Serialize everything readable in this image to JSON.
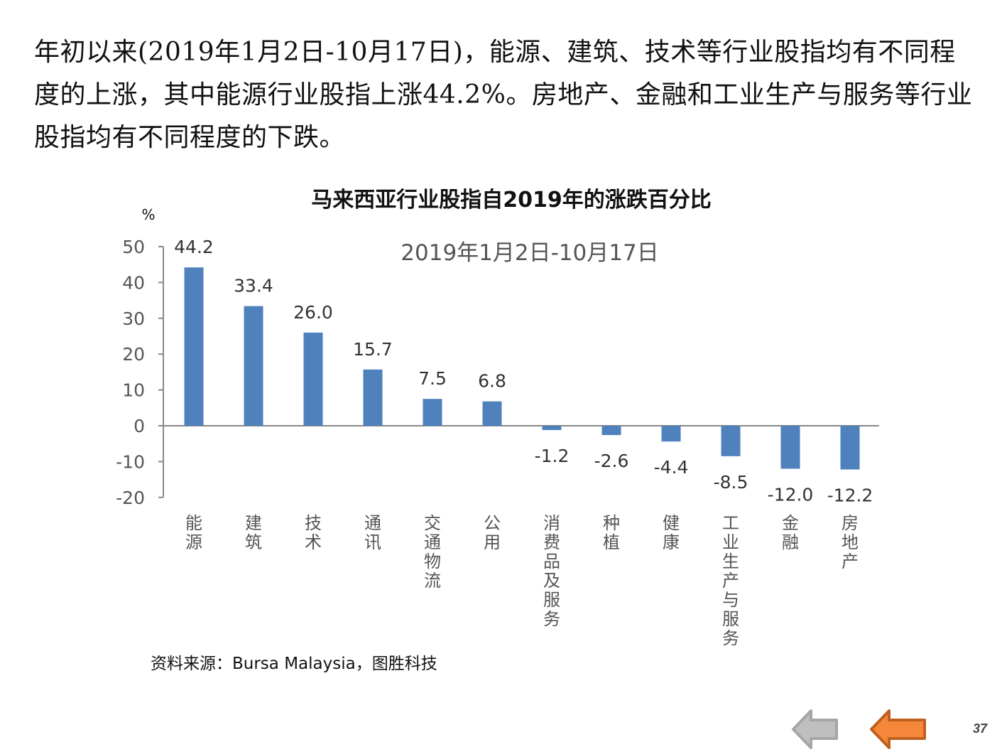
{
  "intro_text": "年初以来(2019年1月2日-10月17日)，能源、建筑、技术等行业股指均有不同程度的上涨，其中能源行业股指上涨44.2%。房地产、金融和工业生产与服务等行业股指均有不同程度的下跌。",
  "source": "资料来源：Bursa Malaysia，图胜科技",
  "page_number": "37",
  "nav": {
    "prev_icon": "arrow-left-gray",
    "back_icon": "arrow-left-orange"
  },
  "colors": {
    "bar": "#4f81bd",
    "axis": "#888888",
    "nav_orange": "#f5873a",
    "nav_gray": "#bfbfbf"
  },
  "chart_data": {
    "type": "bar",
    "title": "马来西亚行业股指自2019年的涨跌百分比",
    "subtitle": "2019年1月2日-10月17日",
    "ylabel": "%",
    "xlabel": "",
    "ylim": [
      -20,
      50
    ],
    "yticks": [
      50,
      40,
      30,
      20,
      10,
      0,
      -10,
      -20
    ],
    "categories": [
      "能源",
      "建筑",
      "技术",
      "通讯",
      "交通物流",
      "公用",
      "消费品及服务",
      "种植",
      "健康",
      "工业生产与服务",
      "金融",
      "房地产"
    ],
    "values": [
      44.2,
      33.4,
      26.0,
      15.7,
      7.5,
      6.8,
      -1.2,
      -2.6,
      -4.4,
      -8.5,
      -12.0,
      -12.2
    ],
    "data_labels": [
      "44.2",
      "33.4",
      "26.0",
      "15.7",
      "7.5",
      "6.8",
      "-1.2",
      "-2.6",
      "-4.4",
      "-8.5",
      "-12.0",
      "-12.2"
    ],
    "grid": false,
    "legend": "none"
  }
}
